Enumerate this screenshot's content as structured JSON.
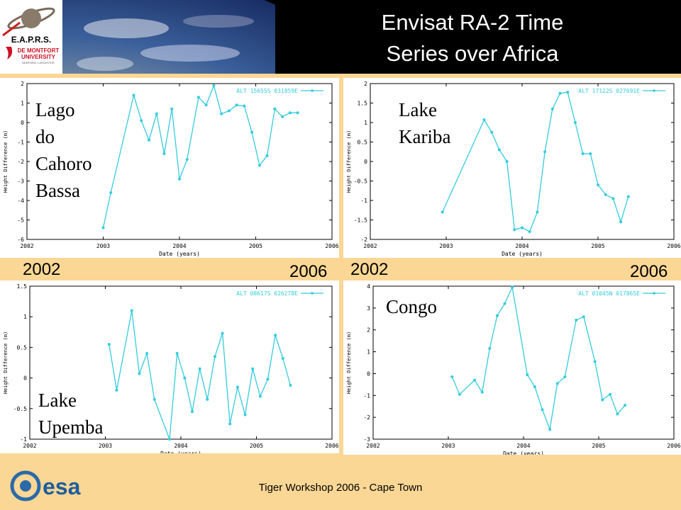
{
  "header": {
    "title_line1": "Envisat RA-2 Time",
    "title_line2": "Series over Africa",
    "logo_eaprs": "E.A.P.R.S.",
    "logo_dmu_line1": "DE MONTFORT",
    "logo_dmu_line2": "UNIVERSITY",
    "logo_dmu_line3": "BEDFORD • LEICESTER"
  },
  "footer": {
    "text": "Tiger Workshop 2006 - Cape Town",
    "esa_logo": "esa"
  },
  "year_labels": {
    "left_start": "2002",
    "left_end": "2006",
    "right_start": "2002",
    "right_end": "2006"
  },
  "colors": {
    "series": "#33ccdd",
    "background": "#fbd795",
    "header": "#000000"
  },
  "chart_data": [
    {
      "type": "line",
      "lake_label": [
        "Lago",
        "do",
        "Cahoro",
        "Bassa"
      ],
      "legend": "ALT 15655S 031859E",
      "xlabel": "Date (years)",
      "ylabel": "Height Difference (m)",
      "xlim": [
        2002,
        2006
      ],
      "ylim": [
        -6,
        2
      ],
      "xticks": [
        "2002",
        "2003",
        "2004",
        "2005",
        "2006"
      ],
      "yticks": [
        "-6",
        "-5",
        "-4",
        "-3",
        "-2",
        "-1",
        "0",
        "1",
        "2"
      ],
      "x": [
        2003.0,
        2003.1,
        2003.4,
        2003.5,
        2003.6,
        2003.7,
        2003.8,
        2003.9,
        2004.0,
        2004.1,
        2004.25,
        2004.35,
        2004.45,
        2004.55,
        2004.65,
        2004.75,
        2004.85,
        2004.95,
        2005.05,
        2005.15,
        2005.25,
        2005.35,
        2005.45,
        2005.55
      ],
      "y": [
        -5.4,
        -3.6,
        1.4,
        0.1,
        -0.9,
        0.45,
        -1.6,
        0.7,
        -2.9,
        -1.9,
        1.3,
        0.9,
        1.9,
        0.45,
        0.6,
        0.9,
        0.85,
        -0.5,
        -2.2,
        -1.7,
        0.7,
        0.3,
        0.5,
        0.5
      ]
    },
    {
      "type": "line",
      "lake_label": [
        "Lake",
        "Kariba"
      ],
      "legend": "ALT 17122S 027691E",
      "xlabel": "Date (years)",
      "ylabel": "Height Difference (m)",
      "xlim": [
        2002,
        2006
      ],
      "ylim": [
        -2,
        2
      ],
      "xticks": [
        "2002",
        "2003",
        "2004",
        "2005",
        "2006"
      ],
      "yticks": [
        "-2",
        "-1.5",
        "-1",
        "-0.5",
        "0",
        "0.5",
        "1",
        "1.5",
        "2"
      ],
      "x": [
        2002.95,
        2003.5,
        2003.6,
        2003.7,
        2003.8,
        2003.9,
        2004.0,
        2004.1,
        2004.2,
        2004.3,
        2004.4,
        2004.5,
        2004.6,
        2004.7,
        2004.8,
        2004.9,
        2005.0,
        2005.1,
        2005.2,
        2005.3,
        2005.4
      ],
      "y": [
        -1.3,
        1.07,
        0.75,
        0.3,
        0.0,
        -1.75,
        -1.7,
        -1.8,
        -1.3,
        0.25,
        1.35,
        1.75,
        1.78,
        1.0,
        0.2,
        0.2,
        -0.6,
        -0.85,
        -0.95,
        -1.55,
        -0.9
      ]
    },
    {
      "type": "line",
      "lake_label": [
        "Lake",
        "Upemba"
      ],
      "legend": "ALT 08617S 026278E",
      "xlabel": "Date (years)",
      "ylabel": "Height Difference (m)",
      "xlim": [
        2002,
        2006
      ],
      "ylim": [
        -1,
        1.5
      ],
      "xticks": [
        "2002",
        "2003",
        "2004",
        "2005",
        "2006"
      ],
      "yticks": [
        "-1",
        "-0.5",
        "0",
        "0.5",
        "1",
        "1.5"
      ],
      "x": [
        2003.05,
        2003.15,
        2003.35,
        2003.45,
        2003.55,
        2003.65,
        2003.85,
        2003.95,
        2004.05,
        2004.15,
        2004.25,
        2004.35,
        2004.45,
        2004.55,
        2004.65,
        2004.75,
        2004.85,
        2004.95,
        2005.05,
        2005.15,
        2005.25,
        2005.35,
        2005.45
      ],
      "y": [
        0.55,
        -0.2,
        1.1,
        0.07,
        0.4,
        -0.35,
        -1.0,
        0.4,
        0.0,
        -0.55,
        0.15,
        -0.35,
        0.35,
        0.73,
        -0.75,
        -0.15,
        -0.6,
        0.15,
        -0.3,
        -0.02,
        0.7,
        0.32,
        -0.12
      ]
    },
    {
      "type": "line",
      "lake_label": [
        "Congo"
      ],
      "legend": "ALT 01045N 017865E",
      "xlabel": "Date (years)",
      "ylabel": "Height Difference (m)",
      "xlim": [
        2002,
        2006
      ],
      "ylim": [
        -3,
        4
      ],
      "xticks": [
        "2002",
        "2003",
        "2004",
        "2005",
        "2006"
      ],
      "yticks": [
        "-3",
        "-2",
        "-1",
        "0",
        "1",
        "2",
        "3",
        "4"
      ],
      "x": [
        2003.05,
        2003.15,
        2003.35,
        2003.45,
        2003.55,
        2003.65,
        2003.75,
        2003.85,
        2004.05,
        2004.15,
        2004.25,
        2004.35,
        2004.45,
        2004.55,
        2004.7,
        2004.8,
        2004.95,
        2005.05,
        2005.15,
        2005.25,
        2005.35
      ],
      "y": [
        -0.15,
        -0.95,
        -0.3,
        -0.85,
        1.15,
        2.65,
        3.2,
        3.95,
        -0.05,
        -0.6,
        -1.65,
        -2.55,
        -0.45,
        -0.15,
        2.45,
        2.6,
        0.55,
        -1.2,
        -0.95,
        -1.85,
        -1.45
      ]
    }
  ]
}
